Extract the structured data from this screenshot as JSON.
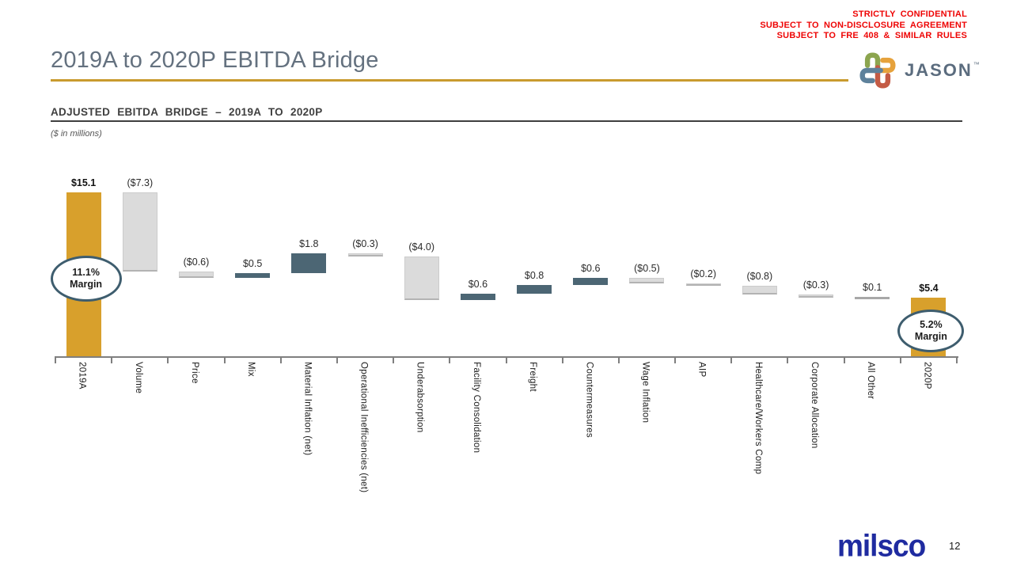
{
  "confidential": {
    "lines": [
      "STRICTLY CONFIDENTIAL",
      "SUBJECT TO NON-DISCLOSURE AGREEMENT",
      "SUBJECT TO FRE 408 & SIMILAR RULES"
    ]
  },
  "header": {
    "title": "2019A to 2020P EBITDA Bridge",
    "logo_text": "JASON",
    "logo_tm": "™"
  },
  "section": {
    "heading": "ADJUSTED EBITDA BRIDGE – 2019A TO 2020P",
    "units_note": "($ in millions)"
  },
  "chart_data": {
    "type": "bar",
    "subtype": "waterfall",
    "title": "Adjusted EBITDA Bridge – 2019A to 2020P",
    "unit": "$ in millions",
    "ylim": [
      0,
      16.5
    ],
    "grid": false,
    "legend": false,
    "categories": [
      "2019A",
      "Volume",
      "Price",
      "Mix",
      "Material Inflation (net)",
      "Operational Inefficiencies (net)",
      "Underabsorption",
      "Facility Consolidation",
      "Freight",
      "Countermeasures",
      "Wage Inflation",
      "AIP",
      "Healthcare/Workers Comp",
      "Corporate Allocation",
      "All Other",
      "2020P"
    ],
    "values": [
      15.1,
      -7.3,
      -0.6,
      0.5,
      1.8,
      -0.3,
      -4.0,
      0.6,
      0.8,
      0.6,
      -0.5,
      -0.2,
      -0.8,
      -0.3,
      0.1,
      5.4
    ],
    "value_labels": [
      "$15.1",
      "($7.3)",
      "($0.6)",
      "$0.5",
      "$1.8",
      "($0.3)",
      "($4.0)",
      "$0.6",
      "$0.8",
      "$0.6",
      "($0.5)",
      "($0.2)",
      "($0.8)",
      "($0.3)",
      "$0.1",
      "$5.4"
    ],
    "bar_kinds": [
      "total",
      "loss",
      "loss",
      "gain",
      "gain",
      "loss",
      "loss",
      "gain",
      "gain",
      "gain",
      "loss",
      "loss",
      "loss",
      "loss",
      "neutral",
      "total"
    ],
    "annotations": [
      {
        "target": "2019A",
        "lines": [
          "11.1%",
          "Margin"
        ]
      },
      {
        "target": "2020P",
        "lines": [
          "5.2%",
          "Margin"
        ]
      }
    ],
    "colors": {
      "total": "#d8a02c",
      "gain": "#4c6674",
      "loss": "#dbdbdb",
      "neutral": "#a8a8a8",
      "oval_border": "#3e5d6e"
    }
  },
  "footer": {
    "brand": "milsco",
    "page_number": "12"
  }
}
